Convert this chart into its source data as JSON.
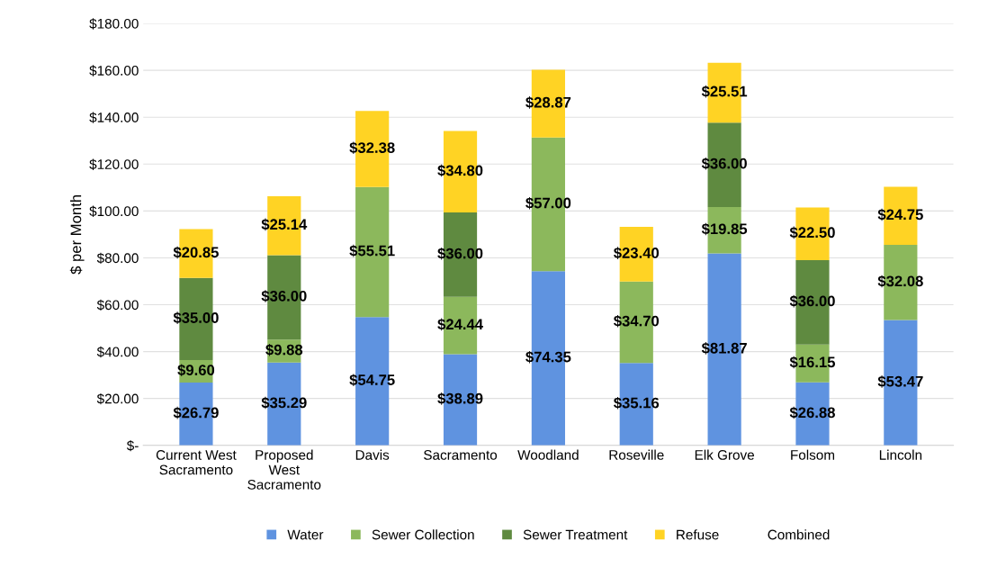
{
  "chart_data": {
    "type": "bar",
    "stacked": true,
    "ylabel": "$ per Month",
    "categories": [
      "Current West\nSacramento",
      "Proposed\nWest\nSacramento",
      "Davis",
      "Sacramento",
      "Woodland",
      "Roseville",
      "Elk Grove",
      "Folsom",
      "Lincoln"
    ],
    "series": [
      {
        "name": "Water",
        "color": "#5f93e0",
        "values": [
          26.79,
          35.29,
          54.75,
          38.89,
          74.35,
          35.16,
          81.87,
          26.88,
          53.47
        ],
        "value_labels": [
          "$26.79",
          "$35.29",
          "$54.75",
          "$38.89",
          "$74.35",
          "$35.16",
          "$81.87",
          "$26.88",
          "$53.47"
        ]
      },
      {
        "name": "Sewer Collection",
        "color": "#8cb85c",
        "values": [
          9.6,
          9.88,
          55.51,
          24.44,
          57.0,
          34.7,
          19.85,
          16.15,
          32.08
        ],
        "value_labels": [
          "$9.60",
          "$9.88",
          "$55.51",
          "$24.44",
          "$57.00",
          "$34.70",
          "$19.85",
          "$16.15",
          "$32.08"
        ]
      },
      {
        "name": "Sewer Treatment",
        "color": "#5f8a40",
        "values": [
          35.0,
          36.0,
          null,
          36.0,
          null,
          null,
          36.0,
          36.0,
          null
        ],
        "value_labels": [
          "$35.00",
          "$36.00",
          null,
          "$36.00",
          null,
          null,
          "$36.00",
          "$36.00",
          null
        ]
      },
      {
        "name": "Refuse",
        "color": "#ffd324",
        "values": [
          20.85,
          25.14,
          32.38,
          34.8,
          28.87,
          23.4,
          25.51,
          22.5,
          24.75
        ],
        "value_labels": [
          "$20.85",
          "$25.14",
          "$32.38",
          "$34.80",
          "$28.87",
          "$23.40",
          "$25.51",
          "$22.50",
          "$24.75"
        ]
      },
      {
        "name": "Combined",
        "values": [
          null,
          null,
          null,
          null,
          null,
          null,
          null,
          null,
          null
        ]
      }
    ],
    "ylim": [
      0,
      180
    ],
    "yticks": [
      {
        "value": 0,
        "label": "$-"
      },
      {
        "value": 20,
        "label": "$20.00"
      },
      {
        "value": 40,
        "label": "$40.00"
      },
      {
        "value": 60,
        "label": "$60.00"
      },
      {
        "value": 80,
        "label": "$80.00"
      },
      {
        "value": 100,
        "label": "$100.00"
      },
      {
        "value": 120,
        "label": "$120.00"
      },
      {
        "value": 140,
        "label": "$140.00"
      },
      {
        "value": 160,
        "label": "$160.00"
      },
      {
        "value": 180,
        "label": "$180.00"
      }
    ],
    "grid": "y",
    "legend": "bottom"
  }
}
